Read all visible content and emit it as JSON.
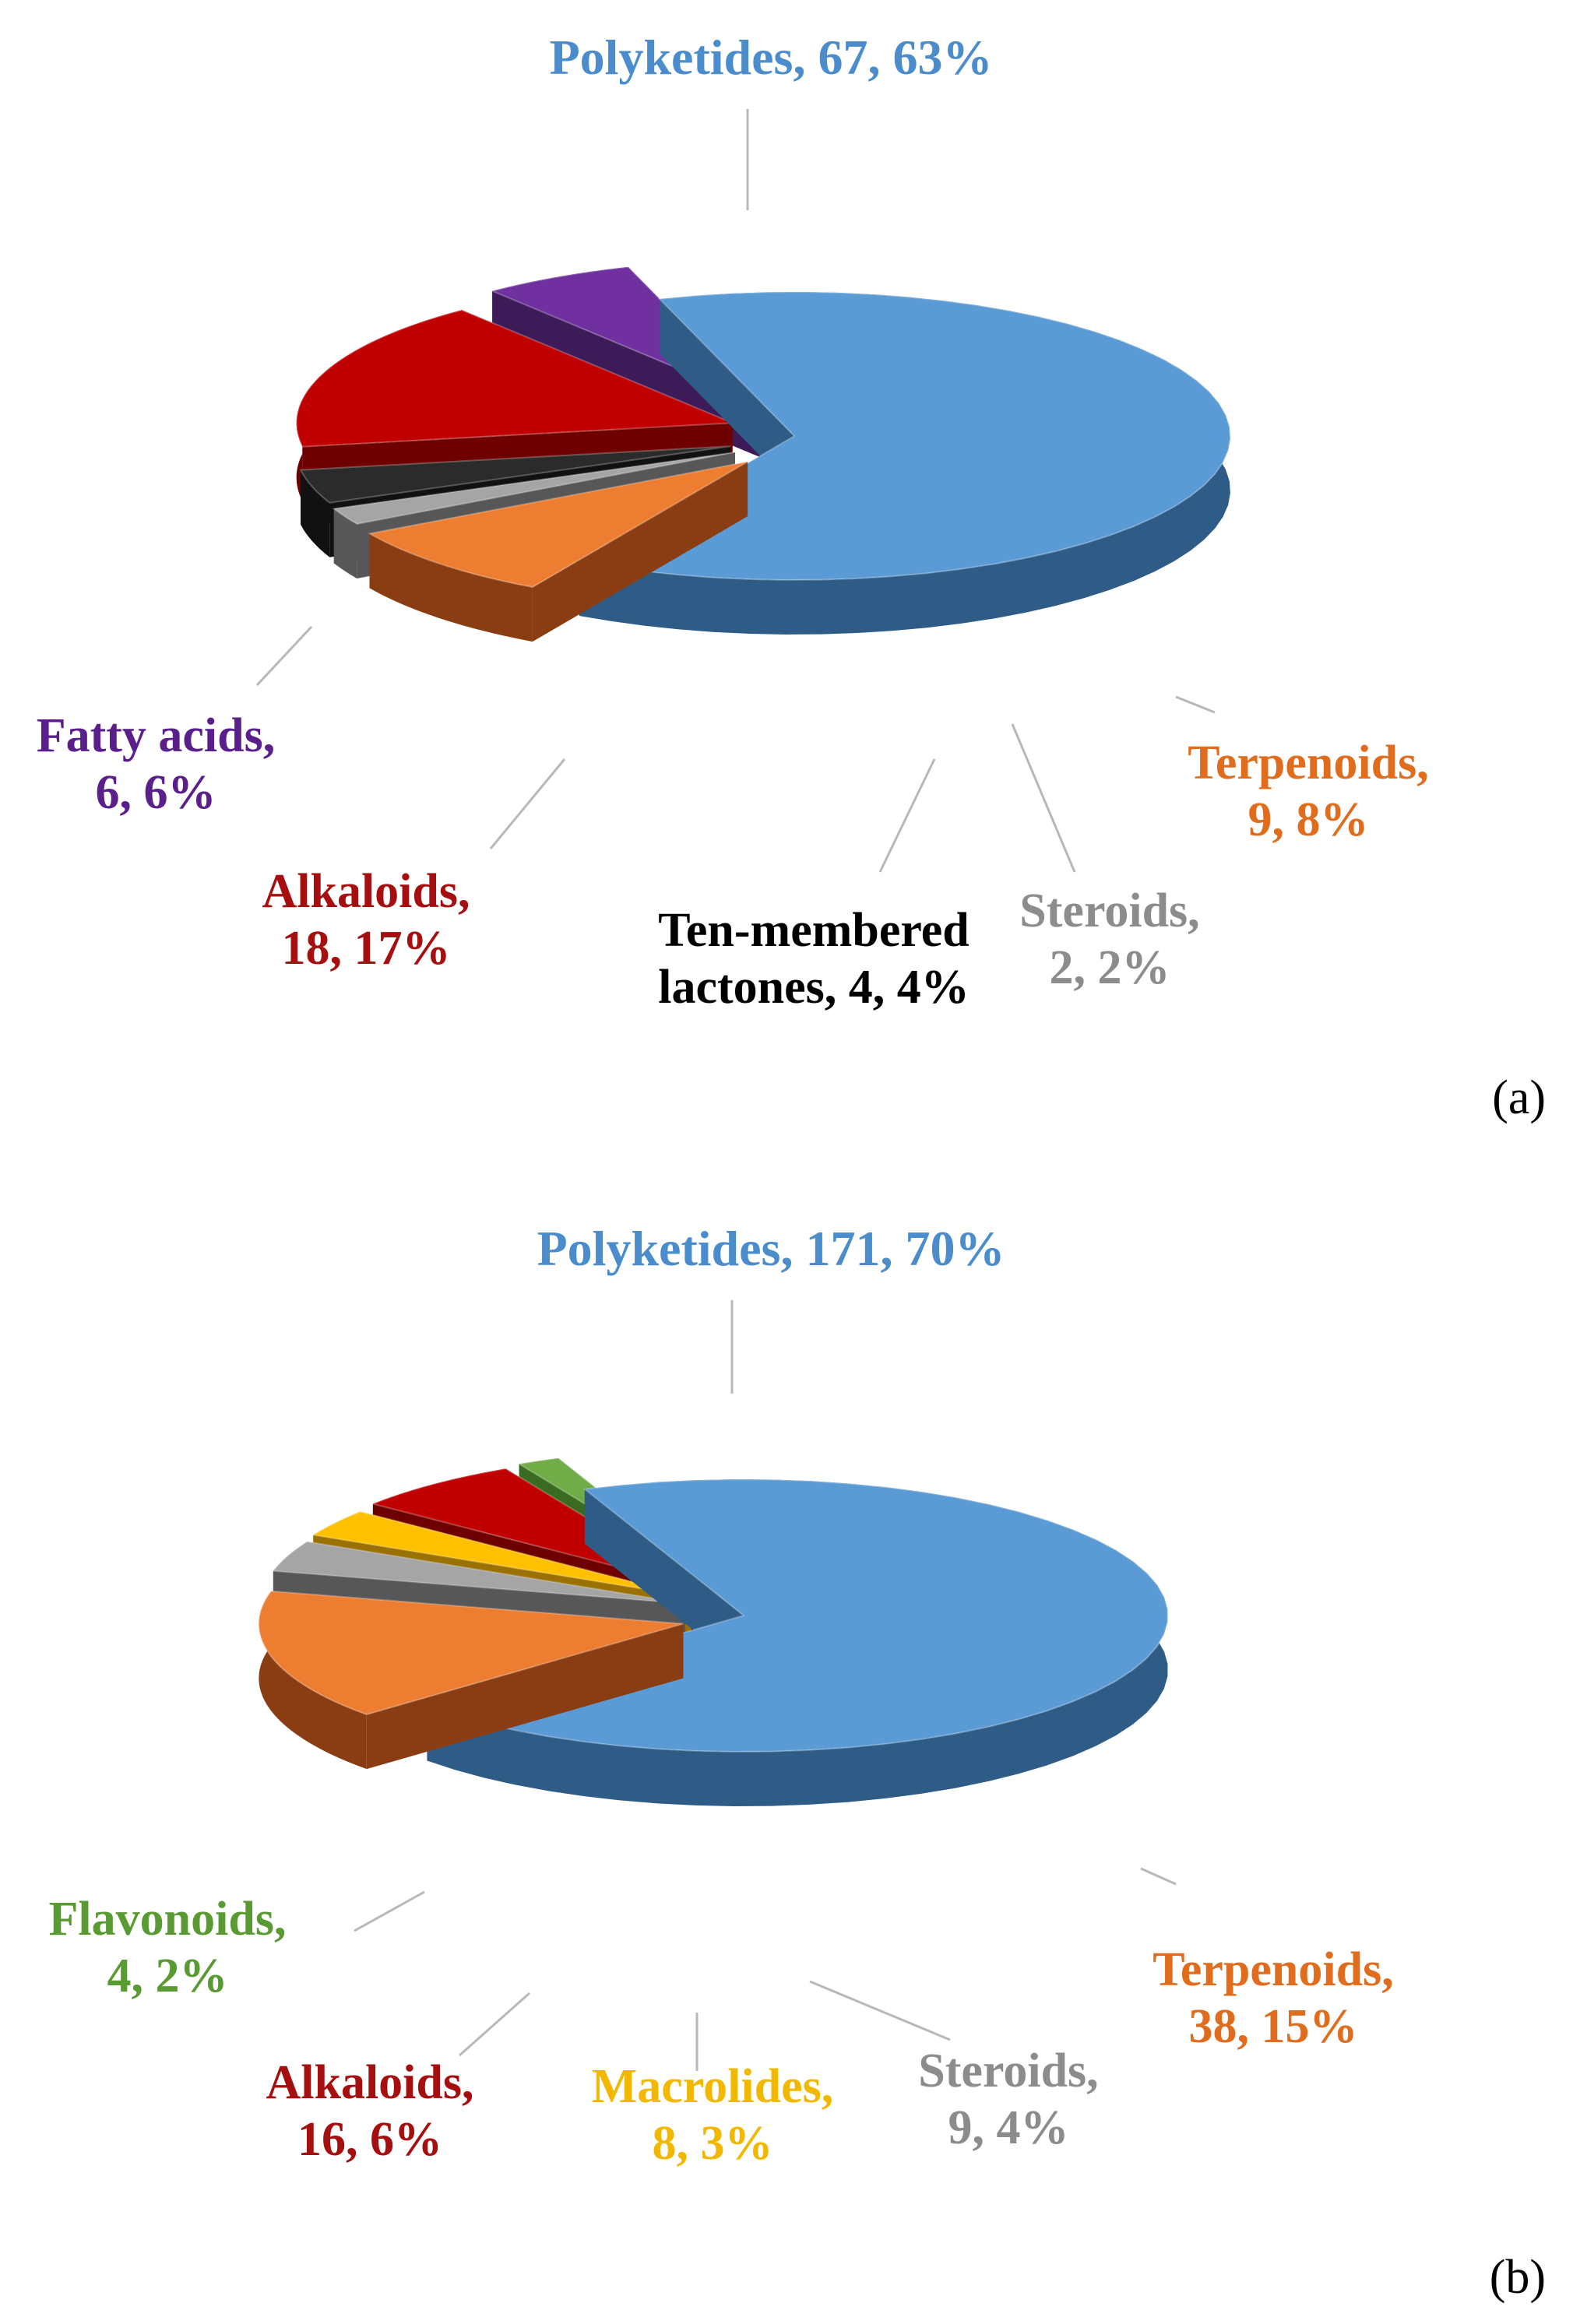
{
  "chart_data": [
    {
      "type": "pie",
      "title": "",
      "panel_label": "(a)",
      "slices": [
        {
          "name": "Polyketides",
          "value": 67,
          "percent": 63,
          "label_lines": [
            "Polyketides, 67, 63%"
          ],
          "color": "#5b9bd5",
          "side": "#2e5c86",
          "exploded": false
        },
        {
          "name": "Terpenoids",
          "value": 9,
          "percent": 8,
          "label_lines": [
            "Terpenoids,",
            "9, 8%"
          ],
          "color": "#ed7d31",
          "side": "#8a3d12",
          "exploded": true
        },
        {
          "name": "Steroids",
          "value": 2,
          "percent": 2,
          "label_lines": [
            "Steroids,",
            "2, 2%"
          ],
          "color": "#a5a5a5",
          "side": "#575757",
          "exploded": true
        },
        {
          "name": "Ten-membered lactones",
          "value": 4,
          "percent": 4,
          "label_lines": [
            "Ten-membered",
            "lactones, 4, 4%"
          ],
          "color": "#2b2b2b",
          "side": "#111111",
          "exploded": true
        },
        {
          "name": "Alkaloids",
          "value": 18,
          "percent": 17,
          "label_lines": [
            "Alkaloids,",
            "18, 17%"
          ],
          "color": "#c00000",
          "side": "#6e0000",
          "exploded": true
        },
        {
          "name": "Fatty acids",
          "value": 6,
          "percent": 6,
          "label_lines": [
            "Fatty acids,",
            "6, 6%"
          ],
          "color": "#7030a0",
          "side": "#3d1a58",
          "exploded": true
        }
      ],
      "label_colors": {
        "Polyketides": "#4a8ccc",
        "Terpenoids": "#e06c1e",
        "Steroids": "#8c8c8c",
        "Ten-membered lactones": "#000000",
        "Alkaloids": "#a50f0f",
        "Fatty acids": "#5a1f8a"
      }
    },
    {
      "type": "pie",
      "title": "",
      "panel_label": "(b)",
      "slices": [
        {
          "name": "Polyketides",
          "value": 171,
          "percent": 70,
          "label_lines": [
            "Polyketides, 171, 70%"
          ],
          "color": "#5b9bd5",
          "side": "#2e5c86",
          "exploded": false
        },
        {
          "name": "Terpenoids",
          "value": 38,
          "percent": 15,
          "label_lines": [
            "Terpenoids,",
            "38, 15%"
          ],
          "color": "#ed7d31",
          "side": "#8a3d12",
          "exploded": true
        },
        {
          "name": "Steroids",
          "value": 9,
          "percent": 4,
          "label_lines": [
            "Steroids,",
            "9, 4%"
          ],
          "color": "#a5a5a5",
          "side": "#575757",
          "exploded": true
        },
        {
          "name": "Macrolides",
          "value": 8,
          "percent": 3,
          "label_lines": [
            "Macrolides,",
            "8, 3%"
          ],
          "color": "#ffc000",
          "side": "#9a7000",
          "exploded": true
        },
        {
          "name": "Alkaloids",
          "value": 16,
          "percent": 6,
          "label_lines": [
            "Alkaloids,",
            "16, 6%"
          ],
          "color": "#c00000",
          "side": "#6e0000",
          "exploded": true
        },
        {
          "name": "Flavonoids",
          "value": 4,
          "percent": 2,
          "label_lines": [
            "Flavonoids,",
            "4, 2%"
          ],
          "color": "#70ad47",
          "side": "#3a6b20",
          "exploded": true
        }
      ],
      "label_colors": {
        "Polyketides": "#4a8ccc",
        "Terpenoids": "#e06c1e",
        "Steroids": "#8c8c8c",
        "Macrolides": "#f2b800",
        "Alkaloids": "#a50f0f",
        "Flavonoids": "#5a9a32"
      }
    }
  ]
}
